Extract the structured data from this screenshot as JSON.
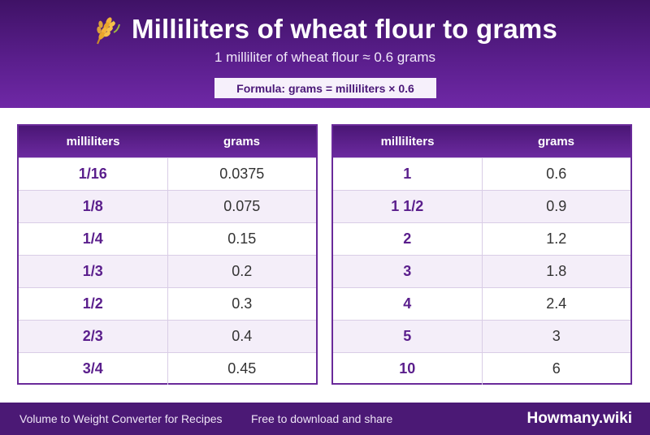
{
  "header": {
    "icon": "wheat-icon",
    "title": "Milliliters of wheat flour to grams",
    "subtitle": "1 milliliter of wheat flour ≈ 0.6 grams",
    "formula": "Formula: grams = milliliters × 0.6"
  },
  "tables": [
    {
      "columns": [
        "milliliters",
        "grams"
      ],
      "rows": [
        [
          "1/16",
          "0.0375"
        ],
        [
          "1/8",
          "0.075"
        ],
        [
          "1/4",
          "0.15"
        ],
        [
          "1/3",
          "0.2"
        ],
        [
          "1/2",
          "0.3"
        ],
        [
          "2/3",
          "0.4"
        ],
        [
          "3/4",
          "0.45"
        ]
      ]
    },
    {
      "columns": [
        "milliliters",
        "grams"
      ],
      "rows": [
        [
          "1",
          "0.6"
        ],
        [
          "1 1/2",
          "0.9"
        ],
        [
          "2",
          "1.2"
        ],
        [
          "3",
          "1.8"
        ],
        [
          "4",
          "2.4"
        ],
        [
          "5",
          "3"
        ],
        [
          "10",
          "6"
        ]
      ]
    }
  ],
  "footer": {
    "left_text": "Volume to Weight Converter for Recipes",
    "mid_text": "Free to download and share",
    "brand": "Howmany.wiki"
  }
}
